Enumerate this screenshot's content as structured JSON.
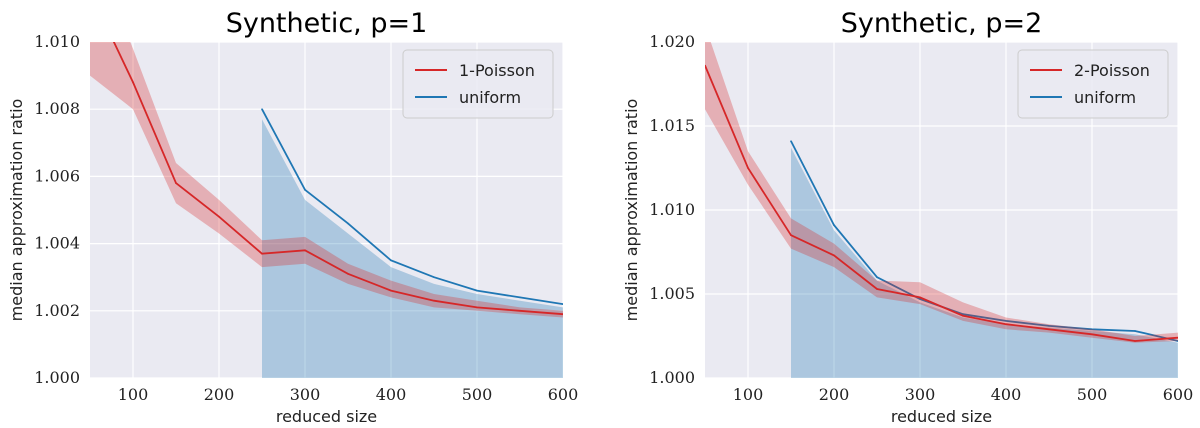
{
  "chart_data": [
    {
      "type": "line",
      "title": "Synthetic, p=1",
      "xlabel": "reduced size",
      "ylabel": "median approximation ratio",
      "xlim": [
        50,
        600
      ],
      "ylim": [
        1.0,
        1.01
      ],
      "xticks": [
        100,
        200,
        300,
        400,
        500,
        600
      ],
      "yticks": [
        1.0,
        1.002,
        1.004,
        1.006,
        1.008,
        1.01
      ],
      "ytick_labels": [
        "1.000",
        "1.002",
        "1.004",
        "1.006",
        "1.008",
        "1.010"
      ],
      "grid": true,
      "legend_position": "top-right",
      "series": [
        {
          "name": "1-Poisson",
          "color": "#d62728",
          "x": [
            50,
            100,
            150,
            200,
            250,
            300,
            350,
            400,
            450,
            500,
            550,
            600
          ],
          "y": [
            1.0115,
            1.0088,
            1.0058,
            1.0048,
            1.0037,
            1.0038,
            1.0031,
            1.0026,
            1.0023,
            1.0021,
            1.002,
            1.0019
          ],
          "band_low": [
            1.009,
            1.008,
            1.0052,
            1.0043,
            1.0033,
            1.0034,
            1.0028,
            1.0024,
            1.0021,
            1.002,
            1.0019,
            1.0018
          ],
          "band_high": [
            1.013,
            1.0098,
            1.0064,
            1.0053,
            1.0041,
            1.0042,
            1.0034,
            1.0029,
            1.0025,
            1.0023,
            1.0021,
            1.002
          ],
          "shade_from_zero": false
        },
        {
          "name": "uniform",
          "color": "#1f77b4",
          "x": [
            250,
            300,
            350,
            400,
            450,
            500,
            550,
            600
          ],
          "y": [
            1.008,
            1.0056,
            1.0046,
            1.0035,
            1.003,
            1.0026,
            1.0024,
            1.0022
          ],
          "band_low": [
            1.0,
            1.0,
            1.0,
            1.0,
            1.0,
            1.0,
            1.0,
            1.0
          ],
          "band_high": [
            1.0077,
            1.0053,
            1.0043,
            1.0033,
            1.0028,
            1.0025,
            1.0023,
            1.0021
          ],
          "shade_from_zero": true
        }
      ]
    },
    {
      "type": "line",
      "title": "Synthetic, p=2",
      "xlabel": "reduced size",
      "ylabel": "median approximation ratio",
      "xlim": [
        50,
        600
      ],
      "ylim": [
        1.0,
        1.02
      ],
      "xticks": [
        100,
        200,
        300,
        400,
        500,
        600
      ],
      "yticks": [
        1.0,
        1.005,
        1.01,
        1.015,
        1.02
      ],
      "ytick_labels": [
        "1.000",
        "1.005",
        "1.010",
        "1.015",
        "1.020"
      ],
      "grid": true,
      "legend_position": "top-right",
      "series": [
        {
          "name": "2-Poisson",
          "color": "#d62728",
          "x": [
            50,
            100,
            150,
            200,
            250,
            300,
            350,
            400,
            450,
            500,
            550,
            600
          ],
          "y": [
            1.0186,
            1.0125,
            1.0085,
            1.0073,
            1.0053,
            1.0048,
            1.0037,
            1.0032,
            1.0029,
            1.0026,
            1.0022,
            1.0024
          ],
          "band_low": [
            1.016,
            1.0115,
            1.0077,
            1.0066,
            1.0048,
            1.0044,
            1.0034,
            1.0029,
            1.0027,
            1.0024,
            1.0021,
            1.0022
          ],
          "band_high": [
            1.021,
            1.0135,
            1.0095,
            1.008,
            1.0058,
            1.0057,
            1.0045,
            1.0036,
            1.0032,
            1.0029,
            1.0025,
            1.0027
          ],
          "shade_from_zero": false
        },
        {
          "name": "uniform",
          "color": "#1f77b4",
          "x": [
            150,
            200,
            250,
            300,
            350,
            400,
            450,
            500,
            550,
            600
          ],
          "y": [
            1.0141,
            1.0091,
            1.006,
            1.0047,
            1.0038,
            1.0034,
            1.0031,
            1.0029,
            1.0028,
            1.0022
          ],
          "band_low": [
            1.0,
            1.0,
            1.0,
            1.0,
            1.0,
            1.0,
            1.0,
            1.0,
            1.0,
            1.0
          ],
          "band_high": [
            1.0137,
            1.0088,
            1.0058,
            1.0045,
            1.0036,
            1.0032,
            1.003,
            1.0028,
            1.0026,
            1.0021
          ],
          "shade_from_zero": true
        }
      ]
    }
  ]
}
